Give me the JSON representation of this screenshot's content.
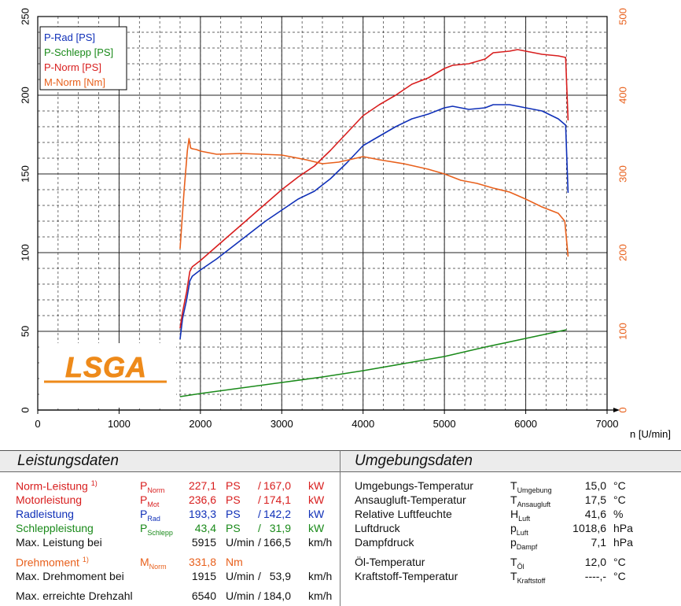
{
  "chart_data": {
    "type": "line",
    "x_axis": {
      "label": "n [U/min]",
      "range": [
        0,
        7000
      ],
      "ticks": [
        "0",
        "1000",
        "2000",
        "3000",
        "4000",
        "5000",
        "6000",
        "7000"
      ]
    },
    "y_left": {
      "range": [
        0,
        250
      ],
      "ticks": [
        "0",
        "50",
        "100",
        "150",
        "200",
        "250"
      ]
    },
    "y_right": {
      "range": [
        0,
        500
      ],
      "ticks": [
        "0",
        "100",
        "200",
        "300",
        "400",
        "500"
      ],
      "color": "#e8601c"
    },
    "legend": {
      "position": "top-left",
      "items": [
        {
          "label": "P-Rad [PS]",
          "color": "#1030b8"
        },
        {
          "label": "P-Schlepp [PS]",
          "color": "#1a8a1a"
        },
        {
          "label": "P-Norm [PS]",
          "color": "#d81e1e"
        },
        {
          "label": "M-Norm [Nm]",
          "color": "#e8601c"
        }
      ]
    },
    "series": [
      {
        "name": "P-Rad [PS]",
        "color": "#1030b8",
        "axis": "left",
        "x": [
          1750,
          1780,
          1830,
          1870,
          1900,
          2000,
          2200,
          2400,
          2600,
          2800,
          3000,
          3200,
          3400,
          3600,
          3800,
          4000,
          4200,
          4400,
          4600,
          4800,
          5000,
          5100,
          5300,
          5500,
          5600,
          5800,
          6000,
          6200,
          6400,
          6490,
          6520
        ],
        "y": [
          45,
          58,
          70,
          82,
          85,
          89,
          96,
          104,
          112,
          120,
          127,
          134,
          139,
          147,
          157,
          168,
          174,
          180,
          185,
          188,
          192,
          193,
          191,
          192,
          194,
          194,
          192,
          190,
          185,
          181,
          138
        ]
      },
      {
        "name": "P-Schlepp [PS]",
        "color": "#1a8a1a",
        "axis": "left",
        "x": [
          1750,
          2000,
          2500,
          3000,
          3500,
          4000,
          4500,
          5000,
          5500,
          6000,
          6500
        ],
        "y": [
          8.5,
          10.5,
          14,
          17.5,
          21,
          25,
          29.5,
          34,
          40,
          45.5,
          51
        ]
      },
      {
        "name": "P-Norm [PS]",
        "color": "#d81e1e",
        "axis": "left",
        "x": [
          1750,
          1780,
          1830,
          1870,
          1900,
          2000,
          2200,
          2400,
          2600,
          2800,
          3000,
          3200,
          3400,
          3600,
          3800,
          4000,
          4200,
          4400,
          4600,
          4800,
          5000,
          5100,
          5300,
          5500,
          5600,
          5800,
          5900,
          6000,
          6200,
          6400,
          6490,
          6520
        ],
        "y": [
          52,
          62,
          75,
          88,
          91,
          95,
          104,
          113,
          122,
          131,
          140,
          148,
          155,
          165,
          176,
          187,
          194,
          200,
          207,
          211,
          217,
          219,
          220,
          223,
          227,
          228,
          229,
          228,
          226,
          225,
          224,
          184
        ]
      },
      {
        "name": "M-Norm [Nm]",
        "color": "#e8601c",
        "axis": "right",
        "x": [
          1750,
          1800,
          1840,
          1860,
          1880,
          1900,
          1950,
          2000,
          2200,
          2500,
          3000,
          3300,
          3500,
          3700,
          4000,
          4200,
          4500,
          4800,
          5000,
          5200,
          5400,
          5600,
          5800,
          6000,
          6200,
          6400,
          6480,
          6500,
          6520
        ],
        "y": [
          205,
          280,
          330,
          345,
          333,
          332,
          331,
          329,
          325,
          326,
          324,
          318,
          313,
          315,
          322,
          318,
          313,
          306,
          300,
          292,
          288,
          282,
          277,
          268,
          258,
          250,
          240,
          218,
          195
        ]
      }
    ]
  },
  "leistungsdaten": {
    "title": "Leistungsdaten",
    "rows": [
      {
        "label": "Norm-Leistung",
        "footnote": "1)",
        "sym": "P",
        "sub": "Norm",
        "v1": "227,1",
        "u1": "PS",
        "sep": "/",
        "v2": "167,0",
        "u2": "kW",
        "color": "#d81e1e"
      },
      {
        "label": "Motorleistung",
        "footnote": "",
        "sym": "P",
        "sub": "Mot",
        "v1": "236,6",
        "u1": "PS",
        "sep": "/",
        "v2": "174,1",
        "u2": "kW",
        "color": "#d81e1e"
      },
      {
        "label": "Radleistung",
        "footnote": "",
        "sym": "P",
        "sub": "Rad",
        "v1": "193,3",
        "u1": "PS",
        "sep": "/",
        "v2": "142,2",
        "u2": "kW",
        "color": "#1030b8"
      },
      {
        "label": "Schleppleistung",
        "footnote": "",
        "sym": "P",
        "sub": "Schlepp",
        "v1": "43,4",
        "u1": "PS",
        "sep": "/",
        "v2": "31,9",
        "u2": "kW",
        "color": "#1a8a1a"
      },
      {
        "label": "Max. Leistung bei",
        "footnote": "",
        "sym": "",
        "sub": "",
        "v1": "5915",
        "u1": "U/min",
        "sep": "/",
        "v2": "166,5",
        "u2": "km/h",
        "color": "#111111"
      },
      {
        "label": "Drehmoment",
        "footnote": "1)",
        "sym": "M",
        "sub": "Norm",
        "v1": "331,8",
        "u1": "Nm",
        "sep": "",
        "v2": "",
        "u2": "",
        "color": "#e8601c"
      },
      {
        "label": "Max. Drehmoment bei",
        "footnote": "",
        "sym": "",
        "sub": "",
        "v1": "1915",
        "u1": "U/min",
        "sep": "/",
        "v2": "53,9",
        "u2": "km/h",
        "color": "#111111"
      },
      {
        "label": "Max. erreichte Drehzahl",
        "footnote": "",
        "sym": "",
        "sub": "",
        "v1": "6540",
        "u1": "U/min",
        "sep": "/",
        "v2": "184,0",
        "u2": "km/h",
        "color": "#111111"
      }
    ]
  },
  "umgebungsdaten": {
    "title": "Umgebungsdaten",
    "rows": [
      {
        "label": "Umgebungs-Temperatur",
        "sym": "T",
        "sub": "Umgebung",
        "value": "15,0",
        "unit": "°C"
      },
      {
        "label": "Ansaugluft-Temperatur",
        "sym": "T",
        "sub": "Ansaugluft",
        "value": "17,5",
        "unit": "°C"
      },
      {
        "label": "Relative Luftfeuchte",
        "sym": "H",
        "sub": "Luft",
        "value": "41,6",
        "unit": "%"
      },
      {
        "label": "Luftdruck",
        "sym": "p",
        "sub": "Luft",
        "value": "1018,6",
        "unit": "hPa"
      },
      {
        "label": "Dampfdruck",
        "sym": "p",
        "sub": "Dampf",
        "value": "7,1",
        "unit": "hPa"
      },
      {
        "label": "Öl-Temperatur",
        "sym": "T",
        "sub": "Öl",
        "value": "12,0",
        "unit": "°C"
      },
      {
        "label": "Kraftstoff-Temperatur",
        "sym": "T",
        "sub": "Kraftstoff",
        "value": "----,-",
        "unit": "°C"
      }
    ]
  },
  "logo": {
    "text": "LSGA",
    "color": "#ee8a1a"
  }
}
